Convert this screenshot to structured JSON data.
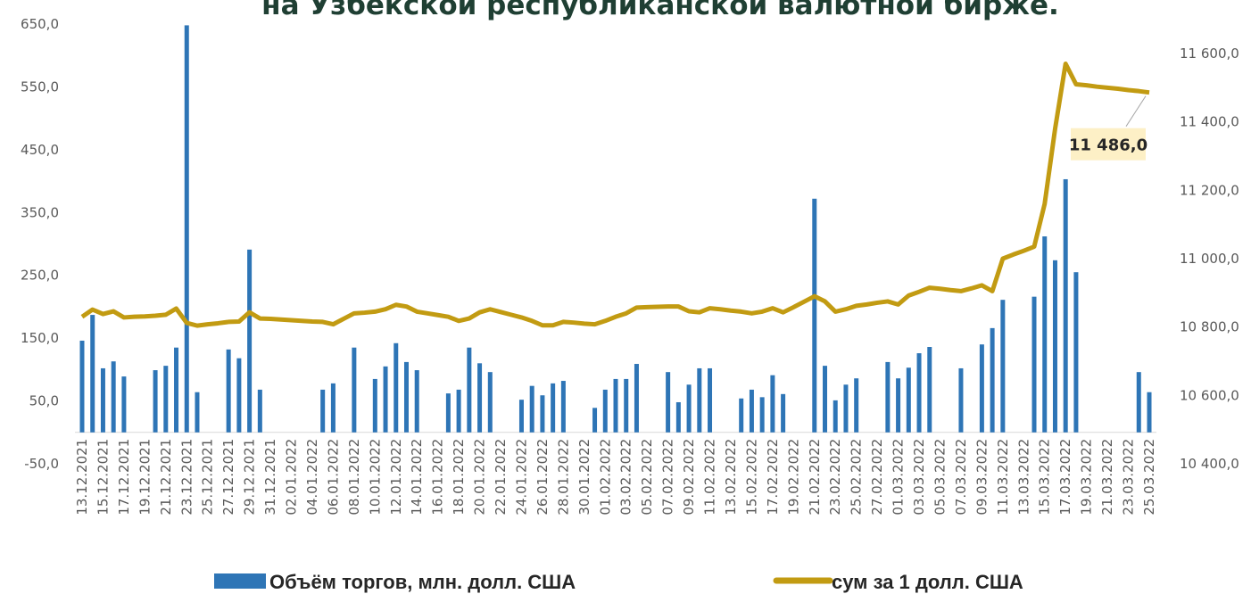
{
  "chart_data": {
    "type": "bar_line",
    "title": "на Узбекской республиканской валютной бирже.",
    "categories": [
      "13.12.2021",
      null,
      "15.12.2021",
      null,
      "17.12.2021",
      null,
      "19.12.2021",
      null,
      "21.12.2021",
      null,
      "23.12.2021",
      null,
      "25.12.2021",
      null,
      "27.12.2021",
      null,
      "29.12.2021",
      null,
      "31.12.2021",
      null,
      "02.01.2022",
      null,
      "04.01.2022",
      null,
      "06.01.2022",
      null,
      "08.01.2022",
      null,
      "10.01.2022",
      null,
      "12.01.2022",
      null,
      "14.01.2022",
      null,
      "16.01.2022",
      null,
      "18.01.2022",
      null,
      "20.01.2022",
      null,
      "22.01.2022",
      null,
      "24.01.2022",
      null,
      "26.01.2022",
      null,
      "28.01.2022",
      null,
      "30.01.2022",
      null,
      "01.02.2022",
      null,
      "03.02.2022",
      null,
      "05.02.2022",
      null,
      "07.02.2022",
      null,
      "09.02.2022",
      null,
      "11.02.2022",
      null,
      "13.02.2022",
      null,
      "15.02.2022",
      null,
      "17.02.2022",
      null,
      "19.02.2022",
      null,
      "21.02.2022",
      null,
      "23.02.2022",
      null,
      "25.02.2022",
      null,
      "27.02.2022",
      null,
      "01.03.2022",
      null,
      "03.03.2022",
      null,
      "05.03.2022",
      null,
      "07.03.2022",
      null,
      "09.03.2022",
      null,
      "11.03.2022",
      null,
      "13.03.2022",
      null,
      "15.03.2022",
      null,
      "17.03.2022",
      null,
      "19.03.2022",
      null,
      "21.03.2022",
      null,
      "23.03.2022",
      null,
      "25.03.2022"
    ],
    "series": [
      {
        "name": "Объём торгов, млн. долл. США",
        "type": "bar",
        "color": "#2e75b6",
        "values": [
          146,
          187,
          102,
          113,
          89,
          null,
          null,
          99,
          106,
          135,
          648,
          64,
          null,
          null,
          132,
          118,
          291,
          68,
          null,
          null,
          null,
          null,
          null,
          68,
          78,
          null,
          135,
          null,
          85,
          105,
          142,
          112,
          99,
          null,
          null,
          62,
          68,
          135,
          110,
          96,
          null,
          null,
          52,
          74,
          59,
          78,
          82,
          null,
          null,
          39,
          68,
          85,
          85,
          109,
          null,
          null,
          96,
          48,
          76,
          102,
          102,
          null,
          null,
          54,
          68,
          56,
          91,
          61,
          null,
          null,
          372,
          106,
          51,
          76,
          86,
          null,
          null,
          112,
          86,
          103,
          126,
          136,
          null,
          null,
          102,
          null,
          140,
          166,
          211,
          null,
          null,
          216,
          312,
          274,
          403,
          255,
          null,
          null,
          null,
          null,
          null,
          96,
          64
        ]
      },
      {
        "name": "сум за 1 долл. США",
        "type": "line",
        "axis": "y2",
        "color": "#c29b12",
        "values": [
          10830,
          10851,
          10838,
          10846,
          10828,
          10830,
          10831,
          10833,
          10836,
          10854,
          10812,
          10804,
          10808,
          10811,
          10815,
          10816,
          10843,
          10825,
          10824,
          10822,
          10820,
          10818,
          10816,
          10815,
          10808,
          10824,
          10840,
          10842,
          10845,
          10852,
          10865,
          10860,
          10845,
          10840,
          10835,
          10830,
          10818,
          10825,
          10843,
          10852,
          10844,
          10836,
          10828,
          10818,
          10805,
          10805,
          10815,
          10813,
          10810,
          10808,
          10818,
          10830,
          10840,
          10857,
          10858,
          10859,
          10860,
          10860,
          10846,
          10843,
          10855,
          10852,
          10848,
          10845,
          10840,
          10845,
          10855,
          10843,
          10858,
          10874,
          10890,
          10875,
          10845,
          10852,
          10862,
          10866,
          10871,
          10875,
          10866,
          10892,
          10903,
          10915,
          10912,
          10908,
          10905,
          10913,
          10922,
          10905,
          11000,
          11012,
          11023,
          11035,
          11160,
          11380,
          11570,
          11510,
          11507,
          11503,
          11500,
          11497,
          11493,
          11490,
          11486
        ],
        "value_labels": [
          null,
          null,
          null,
          null,
          null,
          null,
          null,
          null,
          null,
          null,
          null,
          null,
          null,
          null,
          null,
          null,
          null,
          null,
          null,
          null,
          null,
          null,
          null,
          null,
          null,
          null,
          null,
          null,
          null,
          null,
          null,
          null,
          null,
          null,
          null,
          null,
          null,
          null,
          null,
          null,
          null,
          null,
          null,
          null,
          null,
          null,
          null,
          null,
          null,
          null,
          null,
          null,
          null,
          null,
          null,
          null,
          null,
          null,
          null,
          null,
          null,
          null,
          null,
          null,
          null,
          null,
          null,
          null,
          null,
          null,
          null,
          null,
          null,
          null,
          null,
          null,
          null,
          null,
          null,
          null,
          null,
          null,
          null,
          null,
          null,
          null,
          null,
          null,
          null,
          null,
          null,
          null,
          null,
          null,
          null,
          null,
          null,
          null,
          null,
          null,
          null,
          null,
          "11 486,0"
        ]
      }
    ],
    "ylim": [
      -50,
      650
    ],
    "yticks": [
      {
        "value": -50,
        "label": "-50,0"
      },
      {
        "value": 50,
        "label": "50,0"
      },
      {
        "value": 150,
        "label": "150,0"
      },
      {
        "value": 250,
        "label": "250,0"
      },
      {
        "value": 350,
        "label": "350,0"
      },
      {
        "value": 450,
        "label": "450,0"
      },
      {
        "value": 550,
        "label": "550,0"
      },
      {
        "value": 650,
        "label": "650,0"
      }
    ],
    "y2lim": [
      10400,
      11600
    ],
    "y2ticks": [
      {
        "value": 10400,
        "label": "10 400,0"
      },
      {
        "value": 10600,
        "label": "10 600,0"
      },
      {
        "value": 10800,
        "label": "10 800,0"
      },
      {
        "value": 11000,
        "label": "11 000,0"
      },
      {
        "value": 11200,
        "label": "11 200,0"
      },
      {
        "value": 11400,
        "label": "11 400,0"
      },
      {
        "value": 11600,
        "label": "11 600,0"
      }
    ],
    "legend": "bottom"
  }
}
